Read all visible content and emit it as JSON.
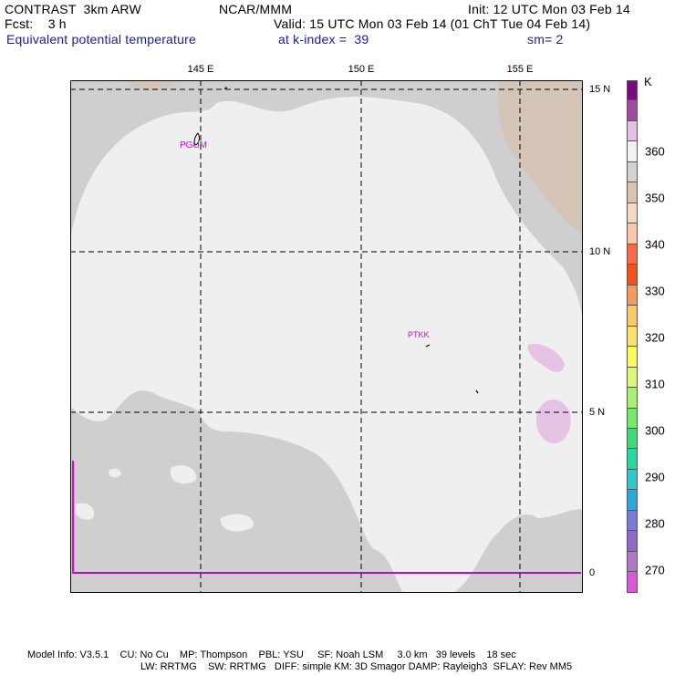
{
  "header": {
    "model": "CONTRAST  3km ARW",
    "org": "NCAR/MMM",
    "init": "Init: 12 UTC Mon 03 Feb 14",
    "fcst": "Fcst:    3 h",
    "valid": "Valid: 15 UTC Mon 03 Feb 14 (01 ChT Tue 04 Feb 14)",
    "field": "Equivalent potential temperature",
    "level": "at k-index =  39",
    "smooth": "sm= 2"
  },
  "map": {
    "lon_labels": [
      "145 E",
      "150 E",
      "155 E"
    ],
    "lat_labels": [
      "15 N",
      "10 N",
      "5 N",
      "0"
    ],
    "stations": [
      "PGUM",
      "PTKK"
    ],
    "colors": {
      "ocean_light": "#efefef",
      "grey_350": "#cfcfcf",
      "tan_345": "#d4c5b7",
      "pink_360": "#e6c3e4",
      "station": "#e000e0"
    }
  },
  "colorbar": {
    "unit": "K",
    "labels": [
      "360",
      "350",
      "340",
      "330",
      "320",
      "310",
      "300",
      "290",
      "280",
      "270"
    ],
    "colors": [
      "#7a0a7e",
      "#a04aa0",
      "#e4c0e4",
      "#f2f2f2",
      "#d2d2d2",
      "#d9c2b0",
      "#f6d8c0",
      "#f7c8ac",
      "#f86a4a",
      "#f4501a",
      "#f49a60",
      "#fac86a",
      "#fae070",
      "#fafa60",
      "#d8f878",
      "#a8f070",
      "#78e86a",
      "#40d87a",
      "#28d8a0",
      "#30c8c8",
      "#2ca8dc",
      "#7a7ad8",
      "#9068c8",
      "#b078c8",
      "#d858d8"
    ]
  },
  "footer": {
    "line1": "Model Info: V3.5.1    CU: No Cu    MP: Thompson    PBL: YSU     SF: Noah LSM     3.0 km   39 levels    18 sec",
    "line2": "LW: RRTMG    SW: RRTMG   DIFF: simple KM: 3D Smagor DAMP: Rayleigh3  SFLAY: Rev MM5"
  }
}
